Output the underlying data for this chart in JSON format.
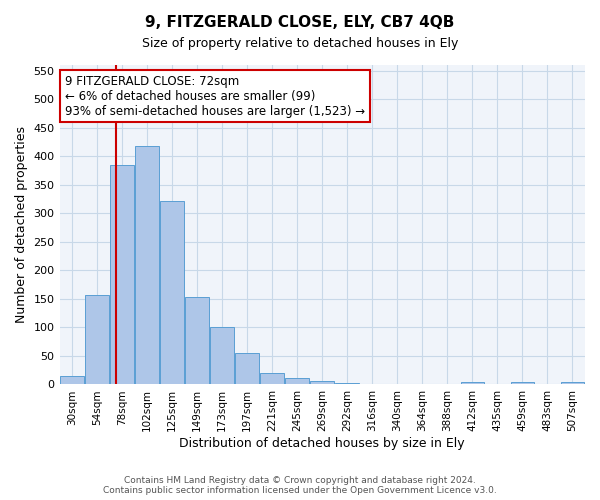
{
  "title_line1": "9, FITZGERALD CLOSE, ELY, CB7 4QB",
  "title_line2": "Size of property relative to detached houses in Ely",
  "xlabel": "Distribution of detached houses by size in Ely",
  "ylabel": "Number of detached properties",
  "bin_labels": [
    "30sqm",
    "54sqm",
    "78sqm",
    "102sqm",
    "125sqm",
    "149sqm",
    "173sqm",
    "197sqm",
    "221sqm",
    "245sqm",
    "269sqm",
    "292sqm",
    "316sqm",
    "340sqm",
    "364sqm",
    "388sqm",
    "412sqm",
    "435sqm",
    "459sqm",
    "483sqm",
    "507sqm"
  ],
  "bar_values": [
    15,
    157,
    385,
    418,
    322,
    153,
    100,
    55,
    20,
    12,
    6,
    2,
    1,
    1,
    0,
    0,
    5,
    0,
    5,
    0,
    5
  ],
  "bar_color": "#aec6e8",
  "bar_edge_color": "#5a9fd4",
  "vline_x": 72,
  "vline_color": "#cc0000",
  "ylim": [
    0,
    560
  ],
  "yticks": [
    0,
    50,
    100,
    150,
    200,
    250,
    300,
    350,
    400,
    450,
    500,
    550
  ],
  "annotation_text": "9 FITZGERALD CLOSE: 72sqm\n← 6% of detached houses are smaller (99)\n93% of semi-detached houses are larger (1,523) →",
  "annotation_box_color": "#ffffff",
  "annotation_box_edge": "#cc0000",
  "footnote": "Contains HM Land Registry data © Crown copyright and database right 2024.\nContains public sector information licensed under the Open Government Licence v3.0.",
  "grid_color": "#c8d8e8",
  "bg_color": "#f0f4fa"
}
